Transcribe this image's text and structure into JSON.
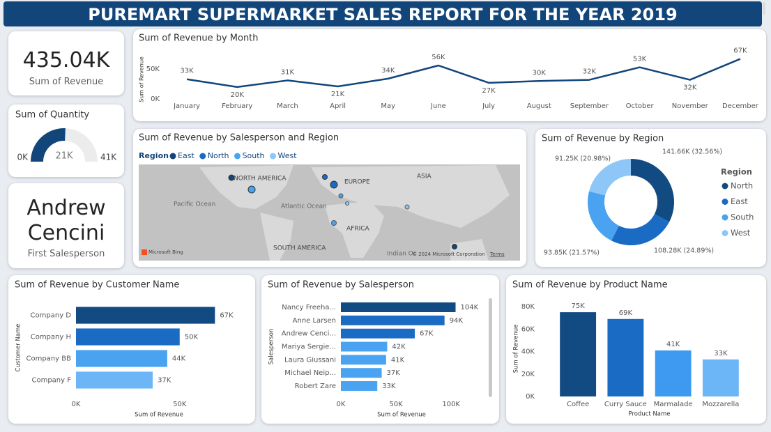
{
  "header": {
    "title": "PUREMART SUPERMARKET SALES REPORT FOR THE YEAR 2019"
  },
  "cards": {
    "revenue": {
      "value": "435.04K",
      "label": "Sum of Revenue"
    },
    "salesperson": {
      "value": "Andrew Cencini",
      "label": "First Salesperson"
    }
  },
  "map": {
    "title": "Sum of Revenue by Salesperson and Region",
    "legend_title": "Region",
    "legend": [
      {
        "name": "East",
        "color": "#12467b"
      },
      {
        "name": "North",
        "color": "#1a6bc4"
      },
      {
        "name": "South",
        "color": "#4aa3f0"
      },
      {
        "name": "West",
        "color": "#8ec7f7"
      }
    ],
    "labels": [
      "NORTH AMERICA",
      "EUROPE",
      "ASIA",
      "Pacific Ocean",
      "Atlantic Ocean",
      "AFRICA",
      "SOUTH AMERICA",
      "Indian Oc"
    ],
    "provider": "Microsoft Bing",
    "copyright": "© 2024 Microsoft Corporation",
    "terms": "Terms"
  },
  "chart_data": [
    {
      "type": "line",
      "title": "Sum of Revenue by Month",
      "ylabel": "Sum of Revenue",
      "categories": [
        "January",
        "February",
        "March",
        "April",
        "May",
        "June",
        "July",
        "August",
        "September",
        "October",
        "November",
        "December"
      ],
      "values": [
        33,
        20,
        31,
        21,
        34,
        56,
        27,
        30,
        32,
        53,
        32,
        67
      ],
      "value_labels": [
        "33K",
        "20K",
        "31K",
        "21K",
        "34K",
        "56K",
        "27K",
        "30K",
        "32K",
        "53K",
        "32K",
        "67K"
      ],
      "color": "#12467b",
      "ylim": [
        0,
        70
      ],
      "yticks": [
        {
          "value": 0,
          "label": "0K"
        },
        {
          "value": 50,
          "label": "50K"
        }
      ]
    },
    {
      "type": "gauge",
      "title": "Sum of Quantity",
      "value": 21,
      "value_label": "21K",
      "color": "#12467b",
      "ylim": [
        0,
        41
      ],
      "yticks": [
        {
          "value": 0,
          "label": "0K"
        },
        {
          "value": 41,
          "label": "41K"
        }
      ]
    },
    {
      "type": "hbar",
      "title": "Sum of Revenue by Customer Name",
      "xlabel": "Sum of Revenue",
      "ylabel": "Customer Name",
      "categories": [
        "Company D",
        "Company H",
        "Company BB",
        "Company F"
      ],
      "values": [
        67,
        50,
        44,
        37
      ],
      "value_labels": [
        "67K",
        "50K",
        "44K",
        "37K"
      ],
      "colors": [
        "#124a82",
        "#1a6bc4",
        "#4aa3f0",
        "#6cb6f7"
      ],
      "xlim": [
        0,
        80
      ],
      "xticks": [
        {
          "value": 0,
          "label": "0K"
        },
        {
          "value": 50,
          "label": "50K"
        }
      ]
    },
    {
      "type": "hbar",
      "title": "Sum of Revenue by Salesperson",
      "xlabel": "Sum of Revenue",
      "ylabel": "Salesperson",
      "categories": [
        "Nancy Freeha...",
        "Anne Larsen",
        "Andrew Cenci...",
        "Mariya Sergie...",
        "Laura Giussani",
        "Michael Neip...",
        "Robert Zare"
      ],
      "values": [
        104,
        94,
        67,
        42,
        41,
        37,
        33
      ],
      "value_labels": [
        "104K",
        "94K",
        "67K",
        "42K",
        "41K",
        "37K",
        "33K"
      ],
      "colors": [
        "#124a82",
        "#1a6bc4",
        "#1a6bc4",
        "#4aa3f0",
        "#4aa3f0",
        "#4aa3f0",
        "#4aa3f0"
      ],
      "xlim": [
        0,
        110
      ],
      "xticks": [
        {
          "value": 0,
          "label": "0K"
        },
        {
          "value": 50,
          "label": "50K"
        },
        {
          "value": 100,
          "label": "100K"
        }
      ]
    },
    {
      "type": "bar",
      "title": "Sum of Revenue by Product Name",
      "xlabel": "Product Name",
      "ylabel": "Sum of Revenue",
      "categories": [
        "Coffee",
        "Curry Sauce",
        "Marmalade",
        "Mozzarella"
      ],
      "values": [
        75,
        69,
        41,
        33
      ],
      "value_labels": [
        "75K",
        "69K",
        "41K",
        "33K"
      ],
      "colors": [
        "#124a82",
        "#1a6bc4",
        "#3d9af0",
        "#6cb6f7"
      ],
      "ylim": [
        0,
        85
      ],
      "yticks": [
        {
          "value": 0,
          "label": "0K"
        },
        {
          "value": 20,
          "label": "20K"
        },
        {
          "value": 40,
          "label": "40K"
        },
        {
          "value": 60,
          "label": "60K"
        },
        {
          "value": 80,
          "label": "80K"
        }
      ]
    },
    {
      "type": "donut",
      "title": "Sum of Revenue by Region",
      "legend_title": "Region",
      "categories": [
        "North",
        "East",
        "South",
        "West"
      ],
      "values": [
        141.66,
        108.28,
        93.85,
        91.25
      ],
      "value_labels": [
        "141.66K (32.56%)",
        "108.28K (24.89%)",
        "93.85K (21.57%)",
        "91.25K (20.98%)"
      ],
      "colors": [
        "#124a82",
        "#1a6bc4",
        "#4aa3f0",
        "#8ec7f7"
      ]
    }
  ]
}
